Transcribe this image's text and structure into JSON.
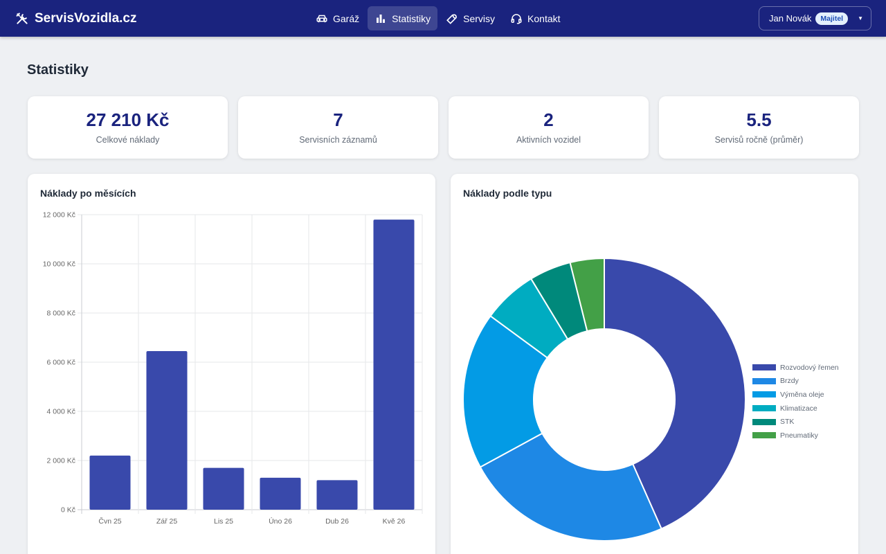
{
  "app": {
    "brand": "ServisVozidla.cz"
  },
  "nav": [
    {
      "label": "Garáž",
      "icon": "car-icon",
      "active": false
    },
    {
      "label": "Statistiky",
      "icon": "bar-chart-icon",
      "active": true
    },
    {
      "label": "Servisy",
      "icon": "wrench-icon",
      "active": false
    },
    {
      "label": "Kontakt",
      "icon": "headset-icon",
      "active": false
    }
  ],
  "user": {
    "name": "Jan Novák",
    "role": "Majitel"
  },
  "page": {
    "title": "Statistiky"
  },
  "stats": [
    {
      "value": "27 210 Kč",
      "label": "Celkové náklady"
    },
    {
      "value": "7",
      "label": "Servisních záznamů"
    },
    {
      "value": "2",
      "label": "Aktivních vozidel"
    },
    {
      "value": "5.5",
      "label": "Servisů ročně (průměr)"
    }
  ],
  "panels": {
    "monthly_title": "Náklady po měsících",
    "type_title": "Náklady podle typu"
  },
  "chart_data": [
    {
      "type": "bar",
      "title": "Náklady po měsících",
      "categories": [
        "Čvn 25",
        "Zář 25",
        "Lis 25",
        "Úno 26",
        "Dub 26",
        "Kvě 26"
      ],
      "values": [
        2200,
        6450,
        1700,
        1300,
        1200,
        11800
      ],
      "ylim": [
        0,
        12000
      ],
      "yticks": [
        "0 Kč",
        "2 000 Kč",
        "4 000 Kč",
        "6 000 Kč",
        "8 000 Kč",
        "10 000 Kč",
        "12 000 Kč"
      ],
      "grid": true,
      "color": "#3949ab"
    },
    {
      "type": "pie",
      "title": "Náklady podle typu",
      "donut": true,
      "labels": [
        "Rozvodový řemen",
        "Brzdy",
        "Výměna oleje",
        "Klimatizace",
        "STK",
        "Pneumatiky"
      ],
      "values": [
        11800,
        6450,
        4900,
        1700,
        1300,
        1060
      ],
      "colors": [
        "#3949ab",
        "#1e88e5",
        "#039be5",
        "#00acc1",
        "#00897b",
        "#43a047"
      ],
      "legend": "right"
    }
  ]
}
